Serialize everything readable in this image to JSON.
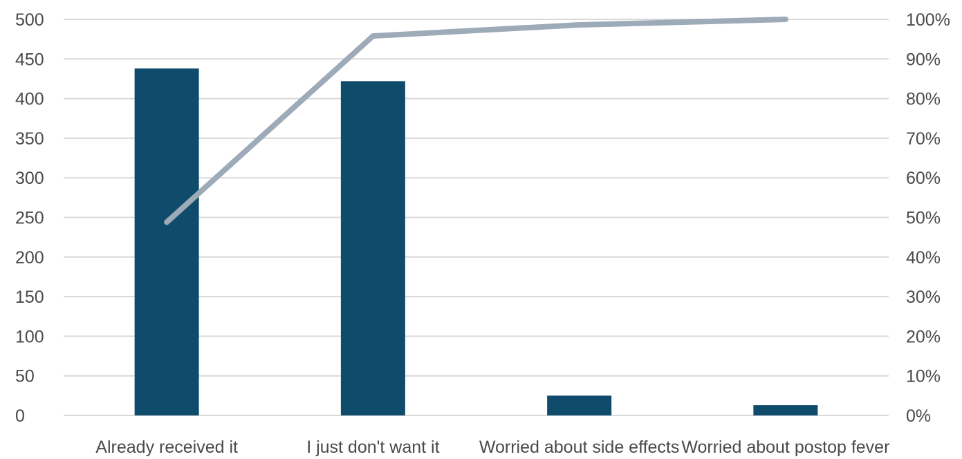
{
  "chart_data": {
    "type": "bar",
    "title": "",
    "xlabel": "",
    "ylabel": "",
    "categories": [
      "Already received it",
      "I just don't want it",
      "Worried about side effects",
      "Worried about postop fever"
    ],
    "series": [
      {
        "type": "bar",
        "axis": "left",
        "values": [
          438,
          422,
          25,
          13
        ]
      },
      {
        "type": "line",
        "axis": "right",
        "values": [
          0.488,
          0.958,
          0.986,
          1.0
        ]
      }
    ],
    "ylim": [
      0,
      500
    ],
    "yticks": [
      0,
      50,
      100,
      150,
      200,
      250,
      300,
      350,
      400,
      450,
      500
    ],
    "ytick_labels": [
      "0",
      "50",
      "100",
      "150",
      "200",
      "250",
      "300",
      "350",
      "400",
      "450",
      "500"
    ],
    "y2lim": [
      0,
      1
    ],
    "y2ticks": [
      0,
      0.1,
      0.2,
      0.3,
      0.4,
      0.5,
      0.6,
      0.7,
      0.8,
      0.9,
      1.0
    ],
    "y2tick_labels": [
      "0%",
      "10%",
      "20%",
      "30%",
      "40%",
      "50%",
      "60%",
      "70%",
      "80%",
      "90%",
      "100%"
    ],
    "grid": true,
    "legend": "none",
    "colors": {
      "bar": "#0f4c6b",
      "line": "#9daab8",
      "grid": "#d9d9d9",
      "text": "#4a4a4a"
    }
  }
}
